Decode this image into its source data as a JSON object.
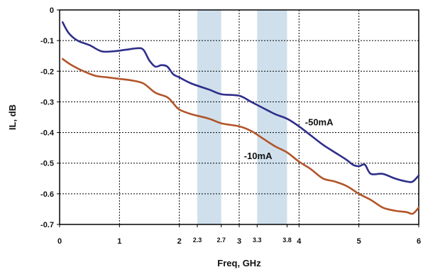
{
  "chart_data": {
    "type": "line",
    "title": "",
    "xlabel": "Freq, GHz",
    "ylabel": "IL, dB",
    "xlim": [
      0,
      6
    ],
    "ylim": [
      -0.7,
      0
    ],
    "grid": true,
    "x_ticks": [
      {
        "value": 0,
        "label": "0"
      },
      {
        "value": 1,
        "label": "1"
      },
      {
        "value": 2,
        "label": "2"
      },
      {
        "value": 2.3,
        "label": "2.3"
      },
      {
        "value": 2.7,
        "label": "2.7"
      },
      {
        "value": 3,
        "label": "3"
      },
      {
        "value": 3.3,
        "label": "3.3"
      },
      {
        "value": 3.8,
        "label": "3.8"
      },
      {
        "value": 4,
        "label": "4"
      },
      {
        "value": 5,
        "label": "5"
      },
      {
        "value": 6,
        "label": "6"
      }
    ],
    "x_gridlines": [
      1,
      2,
      3,
      4,
      5
    ],
    "y_ticks": [
      {
        "value": 0,
        "label": "0"
      },
      {
        "value": -0.1,
        "label": "-0.1"
      },
      {
        "value": -0.2,
        "label": "-0.2"
      },
      {
        "value": -0.3,
        "label": "-0.3"
      },
      {
        "value": -0.4,
        "label": "-0.4"
      },
      {
        "value": -0.5,
        "label": "-0.5"
      },
      {
        "value": -0.6,
        "label": "-0.6"
      },
      {
        "value": -0.7,
        "label": "-0.7"
      }
    ],
    "shaded_bands": [
      {
        "from": 2.3,
        "to": 2.7,
        "color": "#cfe0ec"
      },
      {
        "from": 3.3,
        "to": 3.8,
        "color": "#cfe0ec"
      }
    ],
    "series": [
      {
        "name": "-50mA",
        "color": "#2e2e8a",
        "label_at": [
          4.1,
          -0.365
        ],
        "x": [
          0.05,
          0.15,
          0.3,
          0.5,
          0.7,
          0.9,
          1.1,
          1.3,
          1.4,
          1.5,
          1.6,
          1.7,
          1.8,
          1.9,
          2.0,
          2.2,
          2.5,
          2.7,
          3.0,
          3.2,
          3.4,
          3.6,
          3.8,
          4.0,
          4.2,
          4.4,
          4.6,
          4.8,
          4.9,
          5.0,
          5.1,
          5.2,
          5.4,
          5.6,
          5.8,
          5.9,
          6.0
        ],
        "y": [
          -0.04,
          -0.075,
          -0.1,
          -0.115,
          -0.135,
          -0.135,
          -0.13,
          -0.125,
          -0.13,
          -0.165,
          -0.185,
          -0.18,
          -0.185,
          -0.21,
          -0.22,
          -0.24,
          -0.26,
          -0.275,
          -0.28,
          -0.3,
          -0.32,
          -0.34,
          -0.355,
          -0.38,
          -0.41,
          -0.44,
          -0.465,
          -0.49,
          -0.505,
          -0.51,
          -0.505,
          -0.535,
          -0.535,
          -0.55,
          -0.56,
          -0.56,
          -0.54
        ]
      },
      {
        "name": "-10mA",
        "color": "#b2552a",
        "label_at": [
          3.08,
          -0.475
        ],
        "x": [
          0.05,
          0.2,
          0.4,
          0.6,
          0.8,
          1.0,
          1.2,
          1.4,
          1.6,
          1.8,
          1.9,
          2.0,
          2.2,
          2.5,
          2.7,
          3.0,
          3.2,
          3.4,
          3.6,
          3.8,
          4.0,
          4.2,
          4.4,
          4.6,
          4.8,
          5.0,
          5.2,
          5.4,
          5.6,
          5.8,
          5.9,
          6.0
        ],
        "y": [
          -0.16,
          -0.18,
          -0.2,
          -0.215,
          -0.22,
          -0.225,
          -0.23,
          -0.24,
          -0.27,
          -0.285,
          -0.305,
          -0.325,
          -0.34,
          -0.355,
          -0.37,
          -0.38,
          -0.395,
          -0.42,
          -0.445,
          -0.465,
          -0.495,
          -0.52,
          -0.55,
          -0.56,
          -0.575,
          -0.6,
          -0.62,
          -0.645,
          -0.655,
          -0.66,
          -0.665,
          -0.645
        ]
      }
    ]
  }
}
